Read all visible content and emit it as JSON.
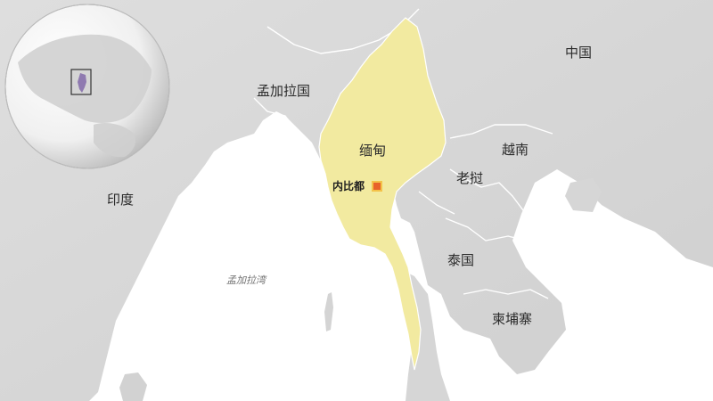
{
  "map": {
    "labels": {
      "china": "中国",
      "bangladesh": "孟加拉国",
      "myanmar": "缅甸",
      "vietnam": "越南",
      "laos": "老挝",
      "india": "印度",
      "thailand": "泰国",
      "cambodia": "柬埔寨",
      "bay_of_bengal": "孟加拉湾",
      "naypyidaw": "内比都"
    },
    "colors": {
      "land": "#d9d9d9",
      "water": "#ffffff",
      "highlight": "#f2eaa0",
      "border": "#ffffff",
      "capital_fill": "#e8622a",
      "capital_border": "#f3c24a",
      "globe_highlight": "#8f7ab0"
    },
    "icons": {
      "capital": "square-capital-marker",
      "inset": "globe-locator-inset"
    }
  }
}
